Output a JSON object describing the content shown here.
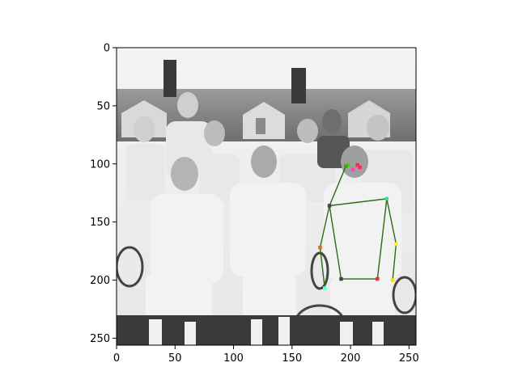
{
  "chart_data": {
    "type": "scatter",
    "subtype": "pose-keypoints-over-image",
    "title": "",
    "xlabel": "",
    "ylabel": "",
    "xlim": [
      0,
      256
    ],
    "ylim": [
      256,
      0
    ],
    "y_inverted": true,
    "grid": false,
    "legend": "none",
    "x_ticks": [
      0,
      50,
      100,
      150,
      200,
      250
    ],
    "y_ticks": [
      0,
      50,
      100,
      150,
      200,
      250
    ],
    "image": "grayscale photo of a group of young men in white tennis clothes holding rackets",
    "skeleton_color": "#2e6b12",
    "keypoints": [
      {
        "name": "nose",
        "x": 202,
        "y": 105,
        "color": "#ff44aa"
      },
      {
        "name": "left_eye",
        "x": 206,
        "y": 101,
        "color": "#ff2266"
      },
      {
        "name": "right_eye",
        "x": 198,
        "y": 101,
        "color": "#44cc22"
      },
      {
        "name": "left_ear",
        "x": 208,
        "y": 103,
        "color": "#ff2266"
      },
      {
        "name": "right_ear",
        "x": 196,
        "y": 102,
        "color": "#33aa11"
      },
      {
        "name": "left_shoulder",
        "x": 231,
        "y": 130,
        "color": "#33ddaa"
      },
      {
        "name": "right_shoulder",
        "x": 182,
        "y": 136,
        "color": "#444444"
      },
      {
        "name": "left_elbow",
        "x": 239,
        "y": 169,
        "color": "#ffee22"
      },
      {
        "name": "right_elbow",
        "x": 174,
        "y": 172,
        "color": "#cc7722"
      },
      {
        "name": "left_wrist",
        "x": 236,
        "y": 200,
        "color": "#ffdd00"
      },
      {
        "name": "right_wrist",
        "x": 178,
        "y": 207,
        "color": "#66ffcc"
      },
      {
        "name": "left_hip",
        "x": 223,
        "y": 199,
        "color": "#dd3344"
      },
      {
        "name": "right_hip",
        "x": 192,
        "y": 199,
        "color": "#444444"
      }
    ],
    "edges": [
      [
        "right_ear",
        "right_shoulder"
      ],
      [
        "right_shoulder",
        "left_shoulder"
      ],
      [
        "left_shoulder",
        "left_elbow"
      ],
      [
        "left_elbow",
        "left_wrist"
      ],
      [
        "right_shoulder",
        "right_elbow"
      ],
      [
        "right_elbow",
        "right_wrist"
      ],
      [
        "left_shoulder",
        "left_hip"
      ],
      [
        "right_shoulder",
        "right_hip"
      ],
      [
        "left_hip",
        "right_hip"
      ]
    ]
  }
}
